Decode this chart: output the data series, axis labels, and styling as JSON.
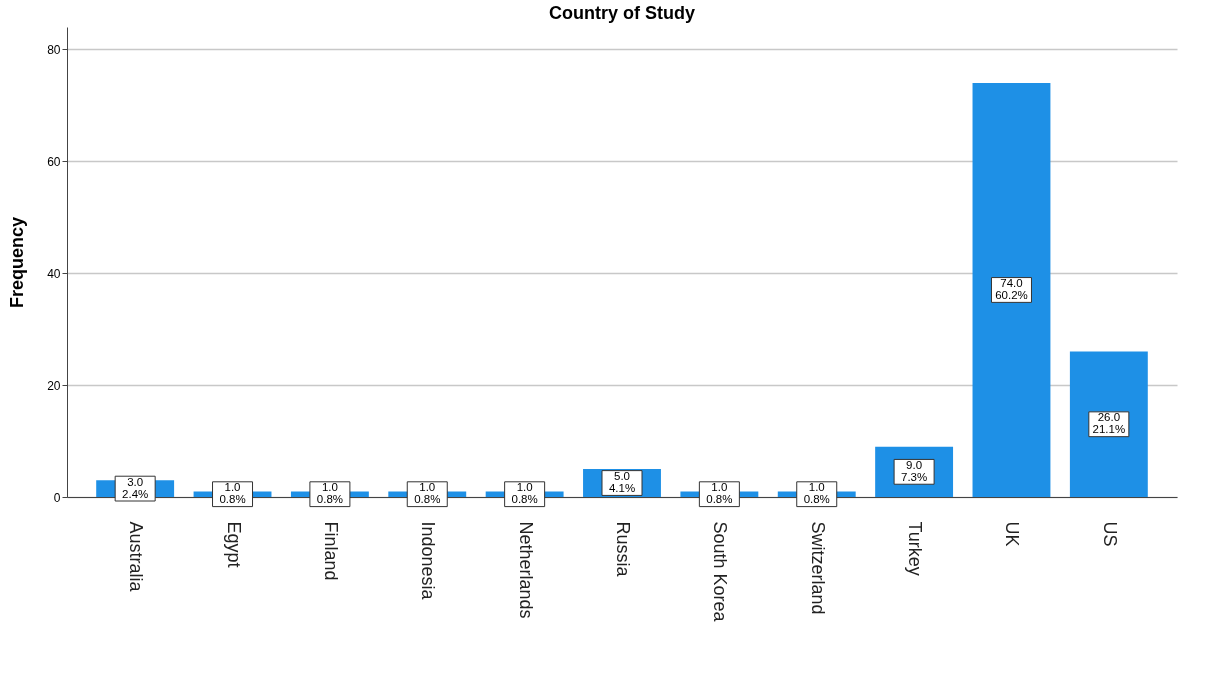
{
  "chart_data": {
    "type": "bar",
    "title": "Country of Study",
    "ylabel": "Frequency",
    "categories": [
      "Australia",
      "Egypt",
      "Finland",
      "Indonesia",
      "Netherlands",
      "Russia",
      "South Korea",
      "Switzerland",
      "Turkey",
      "UK",
      "US"
    ],
    "values": [
      3,
      1,
      1,
      1,
      1,
      5,
      1,
      1,
      9,
      74,
      26
    ],
    "value_labels": [
      "3.0\n2.4%",
      "1.0\n0.8%",
      "1.0\n0.8%",
      "1.0\n0.8%",
      "1.0\n0.8%",
      "5.0\n4.1%",
      "1.0\n0.8%",
      "1.0\n0.8%",
      "9.0\n7.3%",
      "74.0\n60.2%",
      "26.0\n21.1%"
    ],
    "color": "#1e90e6",
    "ylim": [
      0,
      84
    ],
    "yticks": [
      0,
      20,
      40,
      60,
      80
    ],
    "grid": "y"
  }
}
